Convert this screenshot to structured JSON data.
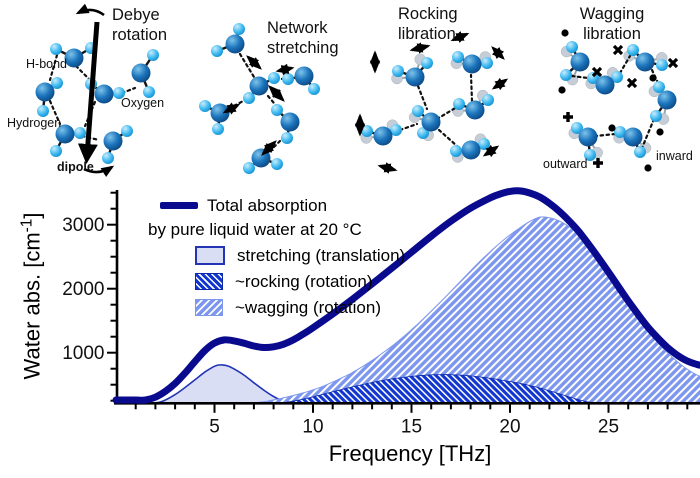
{
  "panels": [
    {
      "title_line1": "Debye",
      "title_line2": "rotation",
      "labels": {
        "h_bond": "H-bond",
        "oxygen": "Oxygen",
        "hydrogen": "Hydrogen",
        "dipole": "dipole"
      }
    },
    {
      "title_line1": "Network",
      "title_line2": "stretching"
    },
    {
      "title_line1": "Rocking",
      "title_line2": "libration"
    },
    {
      "title_line1": "Wagging",
      "title_line2": "libration",
      "labels": {
        "outward": "outward",
        "inward": "inward"
      }
    }
  ],
  "legend": {
    "total_label": "Total absorption",
    "total_sublabel": "by pure liquid water at 20 °C",
    "items": [
      {
        "label": "stretching (translation)"
      },
      {
        "label": "~rocking (rotation)"
      },
      {
        "label": "~wagging (rotation)"
      }
    ]
  },
  "colors": {
    "total_line": "#0a0a8e",
    "stretch_fill": "#d9def5",
    "stretch_stroke": "#2334b5",
    "rock_fill": "#1136d0",
    "wag_fill": "#7e97ee",
    "hatch": "#ffffff",
    "oxygen_sphere": "#1b74bc",
    "hydrogen_sphere": "#3fb9f0",
    "ghost_sphere": "#c6cdd6"
  },
  "chart_data": {
    "type": "area+line",
    "title": "",
    "x_axis": {
      "label": "Frequency [THz]",
      "min": 0,
      "max": 30,
      "major_ticks": [
        5,
        10,
        15,
        20,
        25
      ],
      "minor_tick_step": 1
    },
    "y_axis": {
      "label": "Water abs. [cm⁻¹]",
      "label_pre": "Water abs. [cm",
      "label_sup": "-1",
      "label_post": "]",
      "ticks": [
        1000,
        2000,
        3000
      ],
      "minor_tick_step": 250,
      "range_bottom": 200,
      "range_top": 3550
    },
    "legend_position": "upper-left-inside",
    "series": [
      {
        "name": "Total absorption by pure liquid water at 20 °C",
        "type": "line",
        "points": [
          [
            0,
            200
          ],
          [
            0.5,
            205
          ],
          [
            1,
            215
          ],
          [
            1.5,
            245
          ],
          [
            2,
            305
          ],
          [
            2.5,
            395
          ],
          [
            3,
            520
          ],
          [
            3.5,
            680
          ],
          [
            4,
            860
          ],
          [
            4.5,
            1030
          ],
          [
            5,
            1150
          ],
          [
            5.5,
            1200
          ],
          [
            6,
            1185
          ],
          [
            6.5,
            1148
          ],
          [
            7,
            1105
          ],
          [
            7.5,
            1082
          ],
          [
            8,
            1092
          ],
          [
            8.5,
            1132
          ],
          [
            9,
            1200
          ],
          [
            9.5,
            1290
          ],
          [
            10,
            1390
          ],
          [
            11,
            1605
          ],
          [
            12,
            1835
          ],
          [
            13,
            2075
          ],
          [
            14,
            2320
          ],
          [
            15,
            2570
          ],
          [
            16,
            2820
          ],
          [
            17,
            3055
          ],
          [
            18,
            3260
          ],
          [
            19,
            3420
          ],
          [
            19.5,
            3480
          ],
          [
            20,
            3520
          ],
          [
            20.5,
            3528
          ],
          [
            21,
            3495
          ],
          [
            21.5,
            3435
          ],
          [
            22,
            3335
          ],
          [
            22.5,
            3210
          ],
          [
            23,
            3060
          ],
          [
            23.5,
            2890
          ],
          [
            24,
            2690
          ],
          [
            24.5,
            2480
          ],
          [
            25,
            2260
          ],
          [
            25.5,
            2035
          ],
          [
            26,
            1810
          ],
          [
            26.5,
            1600
          ],
          [
            27,
            1400
          ],
          [
            27.5,
            1230
          ],
          [
            28,
            1080
          ],
          [
            28.5,
            960
          ],
          [
            29,
            870
          ],
          [
            29.5,
            815
          ],
          [
            29.8,
            795
          ]
        ]
      },
      {
        "name": "stretching (translation)",
        "type": "area",
        "points": [
          [
            1.9,
            200
          ],
          [
            2.2,
            225
          ],
          [
            2.6,
            275
          ],
          [
            3,
            345
          ],
          [
            3.5,
            455
          ],
          [
            4,
            575
          ],
          [
            4.5,
            695
          ],
          [
            4.8,
            755
          ],
          [
            5.1,
            800
          ],
          [
            5.4,
            810
          ],
          [
            5.7,
            790
          ],
          [
            6,
            745
          ],
          [
            6.5,
            650
          ],
          [
            7,
            530
          ],
          [
            7.5,
            415
          ],
          [
            8,
            315
          ],
          [
            8.5,
            240
          ],
          [
            8.9,
            205
          ],
          [
            9.1,
            200
          ]
        ]
      },
      {
        "name": "~rocking (rotation)",
        "type": "area",
        "points": [
          [
            8.2,
            200
          ],
          [
            8.5,
            215
          ],
          [
            9,
            245
          ],
          [
            9.5,
            275
          ],
          [
            10,
            310
          ],
          [
            10.5,
            350
          ],
          [
            11,
            390
          ],
          [
            12,
            465
          ],
          [
            13,
            535
          ],
          [
            14,
            590
          ],
          [
            15,
            630
          ],
          [
            16,
            655
          ],
          [
            16.5,
            660
          ],
          [
            17,
            657
          ],
          [
            17.5,
            650
          ],
          [
            18,
            638
          ],
          [
            19,
            600
          ],
          [
            20,
            550
          ],
          [
            20.5,
            522
          ],
          [
            21,
            488
          ],
          [
            21.5,
            450
          ],
          [
            22,
            405
          ],
          [
            22.5,
            358
          ],
          [
            23,
            310
          ],
          [
            23.5,
            265
          ],
          [
            24,
            230
          ],
          [
            24.5,
            210
          ],
          [
            25,
            200
          ]
        ]
      },
      {
        "name": "~wagging (rotation)",
        "type": "area",
        "points": [
          [
            6.6,
            200
          ],
          [
            7,
            215
          ],
          [
            7.5,
            235
          ],
          [
            8,
            262
          ],
          [
            8.5,
            295
          ],
          [
            9,
            332
          ],
          [
            9.5,
            372
          ],
          [
            10,
            420
          ],
          [
            10.5,
            475
          ],
          [
            11,
            540
          ],
          [
            11.5,
            612
          ],
          [
            12,
            690
          ],
          [
            12.5,
            782
          ],
          [
            13,
            880
          ],
          [
            13.5,
            988
          ],
          [
            14,
            1100
          ],
          [
            14.5,
            1225
          ],
          [
            15,
            1360
          ],
          [
            15.5,
            1500
          ],
          [
            16,
            1650
          ],
          [
            16.5,
            1802
          ],
          [
            17,
            1960
          ],
          [
            17.5,
            2120
          ],
          [
            18,
            2280
          ],
          [
            18.5,
            2435
          ],
          [
            19,
            2580
          ],
          [
            19.5,
            2715
          ],
          [
            20,
            2840
          ],
          [
            20.5,
            2950
          ],
          [
            21,
            3050
          ],
          [
            21.5,
            3118
          ],
          [
            22,
            3110
          ],
          [
            22.5,
            3060
          ],
          [
            23,
            2970
          ],
          [
            23.5,
            2840
          ],
          [
            24,
            2670
          ],
          [
            24.5,
            2470
          ],
          [
            25,
            2250
          ],
          [
            25.5,
            2020
          ],
          [
            26,
            1790
          ],
          [
            26.5,
            1560
          ],
          [
            27,
            1350
          ],
          [
            27.5,
            1160
          ],
          [
            28,
            1000
          ],
          [
            28.5,
            860
          ],
          [
            29,
            740
          ],
          [
            29.5,
            650
          ],
          [
            29.8,
            615
          ]
        ]
      }
    ]
  }
}
